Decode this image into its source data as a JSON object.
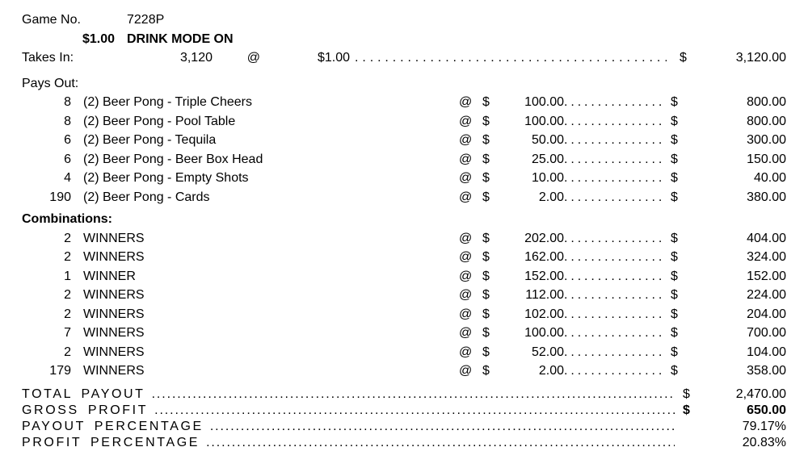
{
  "symbols": {
    "at": "@",
    "dollar": "$"
  },
  "header": {
    "game_no_label": "Game No.",
    "game_no_value": "7228P",
    "price": "$1.00",
    "mode": "DRINK MODE ON",
    "takes_in_label": "Takes In:",
    "takes_in_qty": "3,120",
    "takes_in_rate": "$1.00",
    "takes_in_total": "3,120.00"
  },
  "pays_out": {
    "label": "Pays Out:",
    "rows": [
      {
        "qty": "8",
        "desc": "(2) Beer Pong - Triple Cheers",
        "rate": "100.00",
        "amount": "800.00"
      },
      {
        "qty": "8",
        "desc": "(2) Beer Pong - Pool Table",
        "rate": "100.00",
        "amount": "800.00"
      },
      {
        "qty": "6",
        "desc": "(2) Beer Pong - Tequila",
        "rate": "50.00",
        "amount": "300.00"
      },
      {
        "qty": "6",
        "desc": "(2) Beer Pong - Beer Box Head",
        "rate": "25.00",
        "amount": "150.00"
      },
      {
        "qty": "4",
        "desc": "(2) Beer Pong - Empty Shots",
        "rate": "10.00",
        "amount": "40.00"
      },
      {
        "qty": "190",
        "desc": "(2) Beer Pong - Cards",
        "rate": "2.00",
        "amount": "380.00"
      }
    ]
  },
  "combinations": {
    "label": "Combinations:",
    "rows": [
      {
        "qty": "2",
        "desc": "WINNERS",
        "rate": "202.00",
        "amount": "404.00"
      },
      {
        "qty": "2",
        "desc": "WINNERS",
        "rate": "162.00",
        "amount": "324.00"
      },
      {
        "qty": "1",
        "desc": "WINNER",
        "rate": "152.00",
        "amount": "152.00"
      },
      {
        "qty": "2",
        "desc": "WINNERS",
        "rate": "112.00",
        "amount": "224.00"
      },
      {
        "qty": "2",
        "desc": "WINNERS",
        "rate": "102.00",
        "amount": "204.00"
      },
      {
        "qty": "7",
        "desc": "WINNERS",
        "rate": "100.00",
        "amount": "700.00"
      },
      {
        "qty": "2",
        "desc": "WINNERS",
        "rate": "52.00",
        "amount": "104.00"
      },
      {
        "qty": "179",
        "desc": "WINNERS",
        "rate": "2.00",
        "amount": "358.00"
      }
    ]
  },
  "summary": {
    "rows": [
      {
        "label": "TOTAL PAYOUT",
        "currency": "$",
        "value": "2,470.00"
      },
      {
        "label": "GROSS PROFIT",
        "currency": "$",
        "value": "650.00"
      },
      {
        "label": "PAYOUT PERCENTAGE",
        "currency": "",
        "value": "79.17%"
      },
      {
        "label": "PROFIT PERCENTAGE",
        "currency": "",
        "value": "20.83%"
      }
    ]
  }
}
